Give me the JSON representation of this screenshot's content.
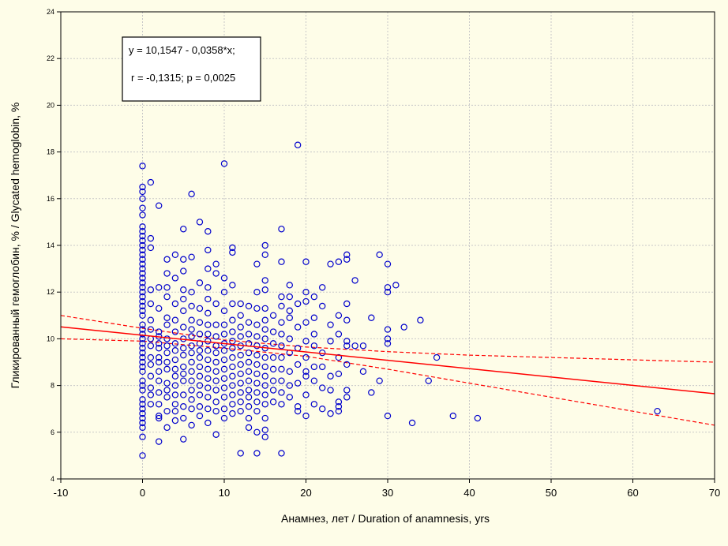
{
  "chart_data": {
    "type": "scatter",
    "title": "",
    "xlabel": "Анамнез, лет / Duration of anamnesis, yrs",
    "ylabel": "Гликированный гемоглобин, % / Glycated hemoglobin, %",
    "xlim": [
      -10,
      70
    ],
    "ylim": [
      4,
      24
    ],
    "x_ticks": [
      -10,
      0,
      10,
      20,
      30,
      40,
      50,
      60,
      70
    ],
    "y_ticks": [
      4,
      6,
      8,
      10,
      12,
      14,
      16,
      18,
      20,
      22,
      24
    ],
    "grid": true,
    "annotation": {
      "line1": "y = 10,1547 - 0,0358*x;",
      "line2": "r = -0,1315; p = 0,0025"
    },
    "regression": {
      "intercept": 10.1547,
      "slope": -0.0358
    },
    "confidence_band": {
      "upper": [
        [
          -10,
          11.0
        ],
        [
          0,
          10.45
        ],
        [
          10,
          9.95
        ],
        [
          20,
          9.65
        ],
        [
          30,
          9.45
        ],
        [
          40,
          9.3
        ],
        [
          50,
          9.2
        ],
        [
          60,
          9.1
        ],
        [
          70,
          9.0
        ]
      ],
      "lower": [
        [
          -10,
          10.0
        ],
        [
          0,
          9.9
        ],
        [
          10,
          9.6
        ],
        [
          20,
          9.25
        ],
        [
          30,
          8.7
        ],
        [
          40,
          8.1
        ],
        [
          50,
          7.5
        ],
        [
          60,
          6.9
        ],
        [
          70,
          6.3
        ]
      ]
    },
    "colors": {
      "points": "#0000cc",
      "regression": "#ff0000",
      "background": "#fefde8"
    },
    "points": [
      [
        0,
        17.4
      ],
      [
        0,
        16.5
      ],
      [
        0,
        16.3
      ],
      [
        0,
        16.0
      ],
      [
        0,
        15.6
      ],
      [
        0,
        15.3
      ],
      [
        0,
        14.8
      ],
      [
        0,
        14.6
      ],
      [
        0,
        14.4
      ],
      [
        0,
        14.2
      ],
      [
        0,
        14.0
      ],
      [
        0,
        13.8
      ],
      [
        0,
        13.6
      ],
      [
        0,
        13.4
      ],
      [
        0,
        13.2
      ],
      [
        0,
        13.0
      ],
      [
        0,
        12.8
      ],
      [
        0,
        12.6
      ],
      [
        0,
        12.4
      ],
      [
        0,
        12.2
      ],
      [
        0,
        12.0
      ],
      [
        0,
        11.8
      ],
      [
        0,
        11.6
      ],
      [
        0,
        11.4
      ],
      [
        0,
        11.2
      ],
      [
        0,
        11.0
      ],
      [
        0,
        10.6
      ],
      [
        0,
        10.4
      ],
      [
        0,
        10.2
      ],
      [
        0,
        10.0
      ],
      [
        0,
        9.8
      ],
      [
        0,
        9.6
      ],
      [
        0,
        9.4
      ],
      [
        0,
        9.2
      ],
      [
        0,
        9.0
      ],
      [
        0,
        8.8
      ],
      [
        0,
        8.6
      ],
      [
        0,
        8.2
      ],
      [
        0,
        8.0
      ],
      [
        0,
        7.8
      ],
      [
        0,
        7.4
      ],
      [
        0,
        7.2
      ],
      [
        0,
        7.0
      ],
      [
        0,
        6.8
      ],
      [
        0,
        6.6
      ],
      [
        0,
        6.4
      ],
      [
        0,
        6.2
      ],
      [
        0,
        5.8
      ],
      [
        0,
        5.0
      ],
      [
        1,
        16.7
      ],
      [
        1,
        14.3
      ],
      [
        1,
        13.9
      ],
      [
        1,
        12.1
      ],
      [
        1,
        11.5
      ],
      [
        1,
        10.8
      ],
      [
        1,
        10.4
      ],
      [
        1,
        10.0
      ],
      [
        1,
        9.7
      ],
      [
        1,
        9.2
      ],
      [
        1,
        8.9
      ],
      [
        1,
        8.4
      ],
      [
        1,
        7.9
      ],
      [
        1,
        7.6
      ],
      [
        1,
        7.2
      ],
      [
        2,
        15.7
      ],
      [
        2,
        12.2
      ],
      [
        2,
        11.3
      ],
      [
        2,
        10.3
      ],
      [
        2,
        10.1
      ],
      [
        2,
        9.8
      ],
      [
        2,
        9.6
      ],
      [
        2,
        9.2
      ],
      [
        2,
        9.0
      ],
      [
        2,
        8.6
      ],
      [
        2,
        8.2
      ],
      [
        2,
        7.7
      ],
      [
        2,
        7.2
      ],
      [
        2,
        6.7
      ],
      [
        2,
        6.6
      ],
      [
        2,
        5.6
      ],
      [
        3,
        13.4
      ],
      [
        3,
        12.8
      ],
      [
        3,
        12.2
      ],
      [
        3,
        11.8
      ],
      [
        3,
        10.9
      ],
      [
        3,
        10.6
      ],
      [
        3,
        10.0
      ],
      [
        3,
        9.7
      ],
      [
        3,
        9.4
      ],
      [
        3,
        9.0
      ],
      [
        3,
        8.7
      ],
      [
        3,
        8.1
      ],
      [
        3,
        7.8
      ],
      [
        3,
        7.5
      ],
      [
        3,
        6.9
      ],
      [
        3,
        6.2
      ],
      [
        4,
        13.6
      ],
      [
        4,
        12.6
      ],
      [
        4,
        11.5
      ],
      [
        4,
        10.8
      ],
      [
        4,
        10.3
      ],
      [
        4,
        9.8
      ],
      [
        4,
        9.5
      ],
      [
        4,
        9.1
      ],
      [
        4,
        8.7
      ],
      [
        4,
        8.4
      ],
      [
        4,
        8.0
      ],
      [
        4,
        7.6
      ],
      [
        4,
        7.2
      ],
      [
        4,
        6.9
      ],
      [
        4,
        6.5
      ],
      [
        5,
        14.7
      ],
      [
        5,
        13.4
      ],
      [
        5,
        12.9
      ],
      [
        5,
        12.1
      ],
      [
        5,
        11.7
      ],
      [
        5,
        11.2
      ],
      [
        5,
        10.5
      ],
      [
        5,
        10.0
      ],
      [
        5,
        9.6
      ],
      [
        5,
        9.3
      ],
      [
        5,
        8.8
      ],
      [
        5,
        8.5
      ],
      [
        5,
        8.2
      ],
      [
        5,
        7.6
      ],
      [
        5,
        7.1
      ],
      [
        5,
        6.6
      ],
      [
        5,
        5.7
      ],
      [
        6,
        16.2
      ],
      [
        6,
        13.5
      ],
      [
        6,
        12.0
      ],
      [
        6,
        11.4
      ],
      [
        6,
        10.8
      ],
      [
        6,
        10.4
      ],
      [
        6,
        10.1
      ],
      [
        6,
        9.7
      ],
      [
        6,
        9.4
      ],
      [
        6,
        9.0
      ],
      [
        6,
        8.6
      ],
      [
        6,
        8.2
      ],
      [
        6,
        7.8
      ],
      [
        6,
        7.4
      ],
      [
        6,
        7.0
      ],
      [
        6,
        6.3
      ],
      [
        7,
        15.0
      ],
      [
        7,
        12.4
      ],
      [
        7,
        11.3
      ],
      [
        7,
        10.7
      ],
      [
        7,
        10.2
      ],
      [
        7,
        9.8
      ],
      [
        7,
        9.5
      ],
      [
        7,
        9.2
      ],
      [
        7,
        8.8
      ],
      [
        7,
        8.4
      ],
      [
        7,
        8.0
      ],
      [
        7,
        7.6
      ],
      [
        7,
        7.1
      ],
      [
        7,
        6.7
      ],
      [
        8,
        14.6
      ],
      [
        8,
        13.8
      ],
      [
        8,
        13.0
      ],
      [
        8,
        12.2
      ],
      [
        8,
        11.7
      ],
      [
        8,
        11.1
      ],
      [
        8,
        10.6
      ],
      [
        8,
        10.2
      ],
      [
        8,
        9.9
      ],
      [
        8,
        9.5
      ],
      [
        8,
        9.1
      ],
      [
        8,
        8.7
      ],
      [
        8,
        8.3
      ],
      [
        8,
        7.9
      ],
      [
        8,
        7.5
      ],
      [
        8,
        7.0
      ],
      [
        8,
        6.4
      ],
      [
        9,
        13.2
      ],
      [
        9,
        12.8
      ],
      [
        9,
        11.5
      ],
      [
        9,
        10.6
      ],
      [
        9,
        10.1
      ],
      [
        9,
        9.7
      ],
      [
        9,
        9.4
      ],
      [
        9,
        9.0
      ],
      [
        9,
        8.6
      ],
      [
        9,
        8.2
      ],
      [
        9,
        7.8
      ],
      [
        9,
        7.3
      ],
      [
        9,
        6.9
      ],
      [
        9,
        5.9
      ],
      [
        10,
        17.5
      ],
      [
        10,
        12.6
      ],
      [
        10,
        12.0
      ],
      [
        10,
        11.2
      ],
      [
        10,
        10.6
      ],
      [
        10,
        10.2
      ],
      [
        10,
        9.8
      ],
      [
        10,
        9.5
      ],
      [
        10,
        9.1
      ],
      [
        10,
        8.7
      ],
      [
        10,
        8.3
      ],
      [
        10,
        7.9
      ],
      [
        10,
        7.5
      ],
      [
        10,
        7.0
      ],
      [
        10,
        6.6
      ],
      [
        11,
        13.9
      ],
      [
        11,
        13.7
      ],
      [
        11,
        12.3
      ],
      [
        11,
        11.5
      ],
      [
        11,
        10.8
      ],
      [
        11,
        10.3
      ],
      [
        11,
        9.9
      ],
      [
        11,
        9.6
      ],
      [
        11,
        9.2
      ],
      [
        11,
        8.8
      ],
      [
        11,
        8.4
      ],
      [
        11,
        8.0
      ],
      [
        11,
        7.6
      ],
      [
        11,
        7.2
      ],
      [
        11,
        6.8
      ],
      [
        12,
        11.5
      ],
      [
        12,
        11.0
      ],
      [
        12,
        10.5
      ],
      [
        12,
        10.1
      ],
      [
        12,
        9.7
      ],
      [
        12,
        9.3
      ],
      [
        12,
        8.9
      ],
      [
        12,
        8.5
      ],
      [
        12,
        8.1
      ],
      [
        12,
        7.7
      ],
      [
        12,
        7.3
      ],
      [
        12,
        6.9
      ],
      [
        12,
        5.1
      ],
      [
        13,
        11.4
      ],
      [
        13,
        10.7
      ],
      [
        13,
        10.2
      ],
      [
        13,
        9.8
      ],
      [
        13,
        9.4
      ],
      [
        13,
        9.0
      ],
      [
        13,
        8.6
      ],
      [
        13,
        8.2
      ],
      [
        13,
        7.8
      ],
      [
        13,
        7.5
      ],
      [
        13,
        7.1
      ],
      [
        13,
        6.6
      ],
      [
        13,
        6.2
      ],
      [
        14,
        13.2
      ],
      [
        14,
        12.0
      ],
      [
        14,
        11.3
      ],
      [
        14,
        10.6
      ],
      [
        14,
        10.1
      ],
      [
        14,
        9.7
      ],
      [
        14,
        9.3
      ],
      [
        14,
        8.9
      ],
      [
        14,
        8.5
      ],
      [
        14,
        8.1
      ],
      [
        14,
        7.7
      ],
      [
        14,
        7.3
      ],
      [
        14,
        6.9
      ],
      [
        14,
        6.0
      ],
      [
        14,
        5.1
      ],
      [
        15,
        14.0
      ],
      [
        15,
        13.6
      ],
      [
        15,
        12.5
      ],
      [
        15,
        12.1
      ],
      [
        15,
        11.3
      ],
      [
        15,
        10.8
      ],
      [
        15,
        10.4
      ],
      [
        15,
        10.0
      ],
      [
        15,
        9.6
      ],
      [
        15,
        9.2
      ],
      [
        15,
        8.8
      ],
      [
        15,
        8.4
      ],
      [
        15,
        8.0
      ],
      [
        15,
        7.6
      ],
      [
        15,
        7.2
      ],
      [
        15,
        6.6
      ],
      [
        15,
        6.1
      ],
      [
        15,
        5.8
      ],
      [
        16,
        11.0
      ],
      [
        16,
        10.3
      ],
      [
        16,
        9.8
      ],
      [
        16,
        9.2
      ],
      [
        16,
        8.7
      ],
      [
        16,
        8.2
      ],
      [
        16,
        7.8
      ],
      [
        16,
        7.3
      ],
      [
        17,
        14.7
      ],
      [
        17,
        13.3
      ],
      [
        17,
        11.8
      ],
      [
        17,
        11.4
      ],
      [
        17,
        10.7
      ],
      [
        17,
        10.2
      ],
      [
        17,
        9.7
      ],
      [
        17,
        9.2
      ],
      [
        17,
        8.7
      ],
      [
        17,
        8.2
      ],
      [
        17,
        7.7
      ],
      [
        17,
        7.2
      ],
      [
        17,
        5.1
      ],
      [
        18,
        12.3
      ],
      [
        18,
        11.8
      ],
      [
        18,
        11.2
      ],
      [
        18,
        10.9
      ],
      [
        18,
        10.0
      ],
      [
        18,
        9.4
      ],
      [
        18,
        8.6
      ],
      [
        18,
        8.0
      ],
      [
        18,
        7.5
      ],
      [
        19,
        18.3
      ],
      [
        19,
        11.5
      ],
      [
        19,
        10.5
      ],
      [
        19,
        9.6
      ],
      [
        19,
        8.9
      ],
      [
        19,
        8.1
      ],
      [
        19,
        7.1
      ],
      [
        19,
        6.9
      ],
      [
        20,
        13.3
      ],
      [
        20,
        12.0
      ],
      [
        20,
        11.6
      ],
      [
        20,
        10.7
      ],
      [
        20,
        9.9
      ],
      [
        20,
        9.2
      ],
      [
        20,
        8.6
      ],
      [
        20,
        8.4
      ],
      [
        20,
        7.6
      ],
      [
        20,
        6.7
      ],
      [
        21,
        11.8
      ],
      [
        21,
        10.9
      ],
      [
        21,
        10.2
      ],
      [
        21,
        9.7
      ],
      [
        21,
        8.8
      ],
      [
        21,
        8.2
      ],
      [
        21,
        7.2
      ],
      [
        22,
        12.2
      ],
      [
        22,
        11.4
      ],
      [
        22,
        9.4
      ],
      [
        22,
        8.8
      ],
      [
        22,
        7.9
      ],
      [
        22,
        7.0
      ],
      [
        23,
        13.2
      ],
      [
        23,
        10.6
      ],
      [
        23,
        9.9
      ],
      [
        23,
        8.4
      ],
      [
        23,
        7.8
      ],
      [
        23,
        6.8
      ],
      [
        24,
        13.3
      ],
      [
        24,
        11.0
      ],
      [
        24,
        10.2
      ],
      [
        24,
        9.2
      ],
      [
        24,
        8.5
      ],
      [
        24,
        7.3
      ],
      [
        24,
        7.1
      ],
      [
        24,
        6.9
      ],
      [
        25,
        13.6
      ],
      [
        25,
        13.4
      ],
      [
        25,
        11.5
      ],
      [
        25,
        10.8
      ],
      [
        25,
        9.9
      ],
      [
        25,
        9.7
      ],
      [
        25,
        8.9
      ],
      [
        25,
        7.8
      ],
      [
        25,
        7.5
      ],
      [
        26,
        12.5
      ],
      [
        26,
        9.7
      ],
      [
        27,
        9.7
      ],
      [
        27,
        8.6
      ],
      [
        28,
        10.9
      ],
      [
        28,
        7.7
      ],
      [
        29,
        13.6
      ],
      [
        29,
        8.2
      ],
      [
        30,
        13.2
      ],
      [
        30,
        12.2
      ],
      [
        30,
        12.0
      ],
      [
        30,
        10.4
      ],
      [
        30,
        10.0
      ],
      [
        30,
        9.8
      ],
      [
        30,
        6.7
      ],
      [
        31,
        12.3
      ],
      [
        32,
        10.5
      ],
      [
        33,
        6.4
      ],
      [
        34,
        10.8
      ],
      [
        35,
        8.2
      ],
      [
        36,
        9.2
      ],
      [
        38,
        6.7
      ],
      [
        41,
        6.6
      ],
      [
        63,
        6.9
      ]
    ]
  }
}
